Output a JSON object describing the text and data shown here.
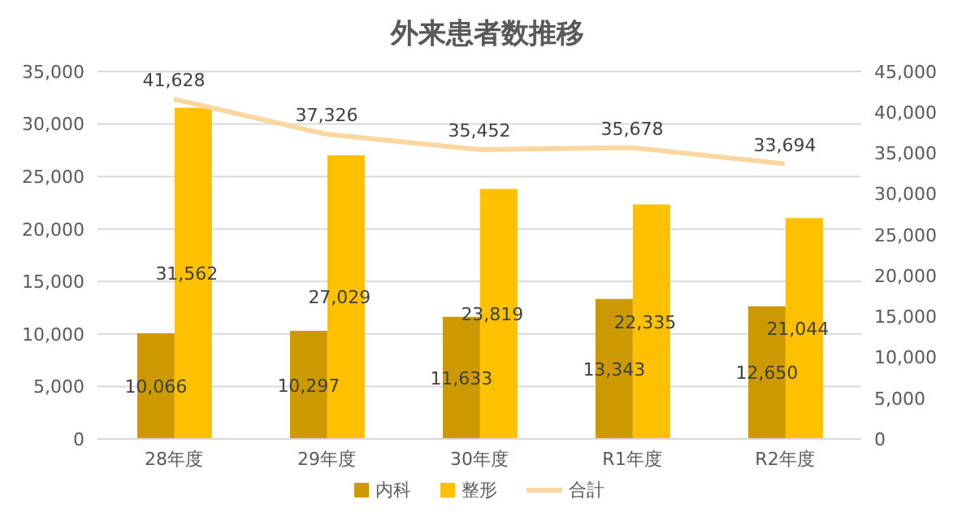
{
  "chart_data": {
    "type": "bar",
    "title": "外来患者数推移",
    "categories": [
      "28年度",
      "29年度",
      "30年度",
      "R1年度",
      "R2年度"
    ],
    "series": [
      {
        "name": "内科",
        "color": "#cc9900",
        "values": [
          10066,
          10297,
          11633,
          13343,
          12650
        ],
        "value_labels": [
          "10,066",
          "10,297",
          "11,633",
          "13,343",
          "12,650"
        ]
      },
      {
        "name": "整形",
        "color": "#ffc000",
        "values": [
          31562,
          27029,
          23819,
          22335,
          21044
        ],
        "value_labels": [
          "31,562",
          "27,029",
          "23,819",
          "22,335",
          "21,044"
        ]
      },
      {
        "name": "合計",
        "type": "line",
        "axis": "y2",
        "color": "#fad7a0",
        "values": [
          41628,
          37326,
          35452,
          35678,
          33694
        ],
        "value_labels": [
          "41,628",
          "37,326",
          "35,452",
          "35,678",
          "33,694"
        ]
      }
    ],
    "ylim": [
      0,
      35000
    ],
    "yticks": [
      0,
      {
        "value": 5000,
        "label": "5,000"
      },
      {
        "value": 10000,
        "label": "10,000"
      },
      {
        "value": 15000,
        "label": "15,000"
      },
      {
        "value": 20000,
        "label": "20,000"
      },
      {
        "value": 25000,
        "label": "25,000"
      },
      {
        "value": 30000,
        "label": "30,000"
      },
      {
        "value": 35000,
        "label": "35,000"
      }
    ],
    "y2lim": [
      0,
      45000
    ],
    "y2ticks": [
      0,
      {
        "value": 5000,
        "label": "5,000"
      },
      {
        "value": 10000,
        "label": "10,000"
      },
      {
        "value": 15000,
        "label": "15,000"
      },
      {
        "value": 20000,
        "label": "20,000"
      },
      {
        "value": 25000,
        "label": "25,000"
      },
      {
        "value": 30000,
        "label": "30,000"
      },
      {
        "value": 35000,
        "label": "35,000"
      },
      {
        "value": 40000,
        "label": "40,000"
      },
      {
        "value": 45000,
        "label": "45,000"
      }
    ],
    "grid": "y",
    "legend": "bottom",
    "marker": "none"
  }
}
